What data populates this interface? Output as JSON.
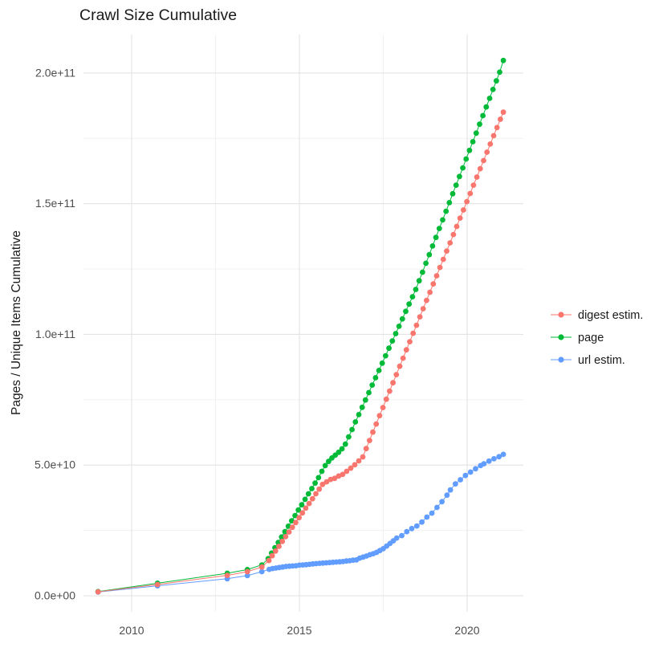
{
  "title": "Crawl Size Cumulative",
  "chart_data": {
    "type": "line",
    "title": "Crawl Size Cumulative",
    "xlabel": "",
    "ylabel": "Pages / Unique Items Cumulative",
    "grid": true,
    "legend_position": "right-center",
    "x_range": [
      2008.55,
      2021.7
    ],
    "y_range_billions": [
      -6.1,
      214.7
    ],
    "x_ticks": {
      "labels": [
        "2010",
        "2015",
        "2020"
      ],
      "values": [
        2010,
        2015,
        2020
      ],
      "minor": [
        2012.5,
        2017.5
      ]
    },
    "y_ticks": {
      "labels": [
        "0.0e+00",
        "5.0e+10",
        "1.0e+11",
        "1.5e+11",
        "2.0e+11"
      ],
      "values_billions": [
        0,
        50,
        100,
        150,
        200
      ],
      "minor_billions": [
        25,
        75,
        125,
        175
      ]
    },
    "value_unit": "pages, in billions (1e9)",
    "colors": {
      "digest": "#F8766D",
      "page": "#00BA38",
      "url": "#619CFF",
      "grid_major": "#e3e3e3",
      "grid_minor": "#f0f0f0",
      "tick_text": "#4d4d4d",
      "text": "#1a1a1a"
    },
    "series": [
      {
        "name": "digest estim.",
        "color": "#F8766D",
        "points": [
          [
            2009.0,
            1.5
          ],
          [
            2010.77,
            4.3
          ],
          [
            2012.85,
            7.8
          ],
          [
            2013.45,
            9.2
          ],
          [
            2013.88,
            11.0
          ],
          [
            2014.09,
            13.5
          ],
          [
            2014.19,
            15.3
          ],
          [
            2014.29,
            17.1
          ],
          [
            2014.39,
            18.9
          ],
          [
            2014.49,
            20.8
          ],
          [
            2014.59,
            22.6
          ],
          [
            2014.69,
            24.4
          ],
          [
            2014.79,
            26.2
          ],
          [
            2014.89,
            28.0
          ],
          [
            2014.99,
            29.9
          ],
          [
            2015.09,
            31.7
          ],
          [
            2015.19,
            33.5
          ],
          [
            2015.29,
            35.3
          ],
          [
            2015.39,
            37.1
          ],
          [
            2015.49,
            39.0
          ],
          [
            2015.59,
            40.8
          ],
          [
            2015.69,
            42.6
          ],
          [
            2015.81,
            43.6
          ],
          [
            2015.93,
            44.5
          ],
          [
            2016.05,
            44.9
          ],
          [
            2016.17,
            45.8
          ],
          [
            2016.29,
            46.4
          ],
          [
            2016.41,
            47.6
          ],
          [
            2016.53,
            48.8
          ],
          [
            2016.65,
            50.1
          ],
          [
            2016.77,
            51.6
          ],
          [
            2016.89,
            53.1
          ],
          [
            2016.99,
            56.3
          ],
          [
            2017.09,
            59.4
          ],
          [
            2017.19,
            62.6
          ],
          [
            2017.29,
            65.7
          ],
          [
            2017.39,
            68.9
          ],
          [
            2017.49,
            72.0
          ],
          [
            2017.59,
            75.2
          ],
          [
            2017.69,
            78.3
          ],
          [
            2017.79,
            81.5
          ],
          [
            2017.89,
            84.6
          ],
          [
            2017.99,
            87.8
          ],
          [
            2018.09,
            90.9
          ],
          [
            2018.19,
            94.1
          ],
          [
            2018.29,
            97.2
          ],
          [
            2018.39,
            100.4
          ],
          [
            2018.49,
            103.5
          ],
          [
            2018.59,
            106.7
          ],
          [
            2018.69,
            109.8
          ],
          [
            2018.79,
            113.0
          ],
          [
            2018.89,
            116.1
          ],
          [
            2018.99,
            119.3
          ],
          [
            2019.09,
            122.4
          ],
          [
            2019.19,
            125.6
          ],
          [
            2019.29,
            128.7
          ],
          [
            2019.39,
            131.9
          ],
          [
            2019.49,
            135.0
          ],
          [
            2019.59,
            138.2
          ],
          [
            2019.69,
            141.3
          ],
          [
            2019.79,
            144.5
          ],
          [
            2019.89,
            147.6
          ],
          [
            2019.99,
            150.8
          ],
          [
            2020.09,
            153.9
          ],
          [
            2020.19,
            157.1
          ],
          [
            2020.29,
            160.2
          ],
          [
            2020.39,
            163.4
          ],
          [
            2020.49,
            166.5
          ],
          [
            2020.59,
            169.7
          ],
          [
            2020.69,
            172.8
          ],
          [
            2020.79,
            176.0
          ],
          [
            2020.89,
            179.1
          ],
          [
            2020.99,
            182.3
          ],
          [
            2021.08,
            185.0
          ]
        ]
      },
      {
        "name": "page",
        "color": "#00BA38",
        "points": [
          [
            2009.0,
            1.6
          ],
          [
            2010.77,
            4.8
          ],
          [
            2012.85,
            8.6
          ],
          [
            2013.45,
            10.0
          ],
          [
            2013.88,
            11.8
          ],
          [
            2014.07,
            14.2
          ],
          [
            2014.17,
            16.3
          ],
          [
            2014.27,
            18.4
          ],
          [
            2014.37,
            20.4
          ],
          [
            2014.47,
            22.5
          ],
          [
            2014.57,
            24.5
          ],
          [
            2014.67,
            26.6
          ],
          [
            2014.77,
            28.7
          ],
          [
            2014.87,
            30.7
          ],
          [
            2014.97,
            32.8
          ],
          [
            2015.07,
            34.8
          ],
          [
            2015.17,
            36.9
          ],
          [
            2015.27,
            39.0
          ],
          [
            2015.37,
            41.0
          ],
          [
            2015.47,
            43.1
          ],
          [
            2015.57,
            45.2
          ],
          [
            2015.67,
            47.6
          ],
          [
            2015.77,
            49.8
          ],
          [
            2015.87,
            51.4
          ],
          [
            2015.97,
            52.7
          ],
          [
            2016.07,
            53.8
          ],
          [
            2016.17,
            54.9
          ],
          [
            2016.27,
            56.2
          ],
          [
            2016.37,
            58.0
          ],
          [
            2016.47,
            60.8
          ],
          [
            2016.57,
            63.6
          ],
          [
            2016.67,
            66.5
          ],
          [
            2016.77,
            69.3
          ],
          [
            2016.87,
            72.1
          ],
          [
            2016.97,
            74.9
          ],
          [
            2017.07,
            77.7
          ],
          [
            2017.17,
            80.6
          ],
          [
            2017.27,
            83.4
          ],
          [
            2017.37,
            86.2
          ],
          [
            2017.47,
            89.0
          ],
          [
            2017.57,
            91.8
          ],
          [
            2017.67,
            94.7
          ],
          [
            2017.77,
            97.5
          ],
          [
            2017.87,
            100.3
          ],
          [
            2017.97,
            103.1
          ],
          [
            2018.07,
            105.9
          ],
          [
            2018.17,
            108.8
          ],
          [
            2018.27,
            111.6
          ],
          [
            2018.37,
            114.4
          ],
          [
            2018.47,
            117.2
          ],
          [
            2018.57,
            120.5
          ],
          [
            2018.67,
            123.8
          ],
          [
            2018.77,
            127.2
          ],
          [
            2018.87,
            130.5
          ],
          [
            2018.97,
            133.8
          ],
          [
            2019.07,
            137.1
          ],
          [
            2019.17,
            140.5
          ],
          [
            2019.27,
            143.8
          ],
          [
            2019.37,
            147.1
          ],
          [
            2019.47,
            150.4
          ],
          [
            2019.57,
            153.8
          ],
          [
            2019.67,
            157.1
          ],
          [
            2019.77,
            160.4
          ],
          [
            2019.87,
            163.7
          ],
          [
            2019.97,
            167.1
          ],
          [
            2020.07,
            170.4
          ],
          [
            2020.17,
            173.7
          ],
          [
            2020.27,
            177.0
          ],
          [
            2020.37,
            180.4
          ],
          [
            2020.47,
            183.7
          ],
          [
            2020.57,
            187.0
          ],
          [
            2020.67,
            190.3
          ],
          [
            2020.77,
            193.7
          ],
          [
            2020.87,
            197.0
          ],
          [
            2020.97,
            200.3
          ],
          [
            2021.08,
            204.8
          ]
        ]
      },
      {
        "name": "url estim.",
        "color": "#619CFF",
        "points": [
          [
            2009.0,
            1.4
          ],
          [
            2010.77,
            3.8
          ],
          [
            2012.85,
            6.5
          ],
          [
            2013.45,
            7.7
          ],
          [
            2013.88,
            9.2
          ],
          [
            2014.1,
            10.1
          ],
          [
            2014.2,
            10.4
          ],
          [
            2014.3,
            10.6
          ],
          [
            2014.4,
            10.8
          ],
          [
            2014.5,
            11.0
          ],
          [
            2014.6,
            11.2
          ],
          [
            2014.7,
            11.3
          ],
          [
            2014.8,
            11.4
          ],
          [
            2014.9,
            11.5
          ],
          [
            2015.0,
            11.7
          ],
          [
            2015.1,
            11.8
          ],
          [
            2015.2,
            11.9
          ],
          [
            2015.3,
            12.0
          ],
          [
            2015.4,
            12.2
          ],
          [
            2015.5,
            12.3
          ],
          [
            2015.6,
            12.4
          ],
          [
            2015.7,
            12.5
          ],
          [
            2015.8,
            12.6
          ],
          [
            2015.9,
            12.7
          ],
          [
            2016.0,
            12.8
          ],
          [
            2016.1,
            12.9
          ],
          [
            2016.2,
            13.0
          ],
          [
            2016.3,
            13.1
          ],
          [
            2016.4,
            13.3
          ],
          [
            2016.5,
            13.4
          ],
          [
            2016.6,
            13.6
          ],
          [
            2016.7,
            13.7
          ],
          [
            2016.8,
            14.4
          ],
          [
            2016.9,
            14.8
          ],
          [
            2017.0,
            15.2
          ],
          [
            2017.1,
            15.7
          ],
          [
            2017.2,
            16.1
          ],
          [
            2017.3,
            16.6
          ],
          [
            2017.4,
            17.3
          ],
          [
            2017.5,
            18.0
          ],
          [
            2017.6,
            19.0
          ],
          [
            2017.7,
            20.0
          ],
          [
            2017.8,
            21.0
          ],
          [
            2017.9,
            22.1
          ],
          [
            2018.05,
            23.0
          ],
          [
            2018.2,
            24.5
          ],
          [
            2018.35,
            25.7
          ],
          [
            2018.5,
            26.7
          ],
          [
            2018.65,
            28.2
          ],
          [
            2018.8,
            30.1
          ],
          [
            2018.95,
            31.6
          ],
          [
            2019.1,
            33.8
          ],
          [
            2019.25,
            36.0
          ],
          [
            2019.4,
            38.5
          ],
          [
            2019.5,
            40.5
          ],
          [
            2019.65,
            42.8
          ],
          [
            2019.8,
            44.4
          ],
          [
            2019.95,
            46.0
          ],
          [
            2020.1,
            47.3
          ],
          [
            2020.25,
            48.6
          ],
          [
            2020.4,
            49.8
          ],
          [
            2020.5,
            50.5
          ],
          [
            2020.65,
            51.5
          ],
          [
            2020.8,
            52.4
          ],
          [
            2020.95,
            53.2
          ],
          [
            2021.08,
            54.1
          ]
        ]
      }
    ]
  },
  "legend": {
    "items": [
      {
        "label": "digest estim.",
        "color": "#F8766D"
      },
      {
        "label": "page",
        "color": "#00BA38"
      },
      {
        "label": "url estim.",
        "color": "#619CFF"
      }
    ]
  }
}
